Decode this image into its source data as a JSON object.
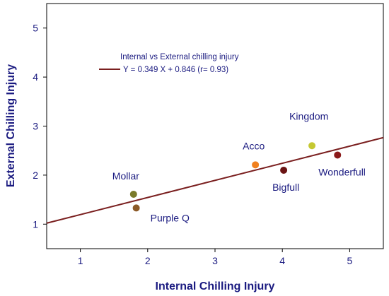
{
  "chart_data": {
    "type": "scatter",
    "xlabel": "Internal Chilling Injury",
    "ylabel": "External Chilling Injury",
    "xlim": [
      0.5,
      5.5
    ],
    "ylim": [
      0.5,
      5.5
    ],
    "xticks": [
      "1",
      "2",
      "3",
      "4",
      "5"
    ],
    "yticks": [
      "1",
      "2",
      "3",
      "4",
      "5"
    ],
    "grid": false,
    "legend": {
      "placement": "top-left",
      "title": "Internal vs External chilling injury",
      "entry": "Y = 0.349 X + 0.846 (r= 0.93)",
      "color": "#7a1f1f"
    },
    "regression": {
      "slope": 0.349,
      "intercept": 0.846
    },
    "points": [
      {
        "label": "Mollar",
        "x": 1.79,
        "y": 1.61,
        "color": "#7a7a2a"
      },
      {
        "label": "Purple Q",
        "x": 1.83,
        "y": 1.33,
        "color": "#8c5a28"
      },
      {
        "label": "Acco",
        "x": 3.6,
        "y": 2.21,
        "color": "#f0801e"
      },
      {
        "label": "Bigfull",
        "x": 4.02,
        "y": 2.1,
        "color": "#6b1414"
      },
      {
        "label": "Kingdom",
        "x": 4.44,
        "y": 2.6,
        "color": "#c5c832"
      },
      {
        "label": "Wonderfull",
        "x": 4.82,
        "y": 2.41,
        "color": "#8b1a1a"
      }
    ]
  }
}
